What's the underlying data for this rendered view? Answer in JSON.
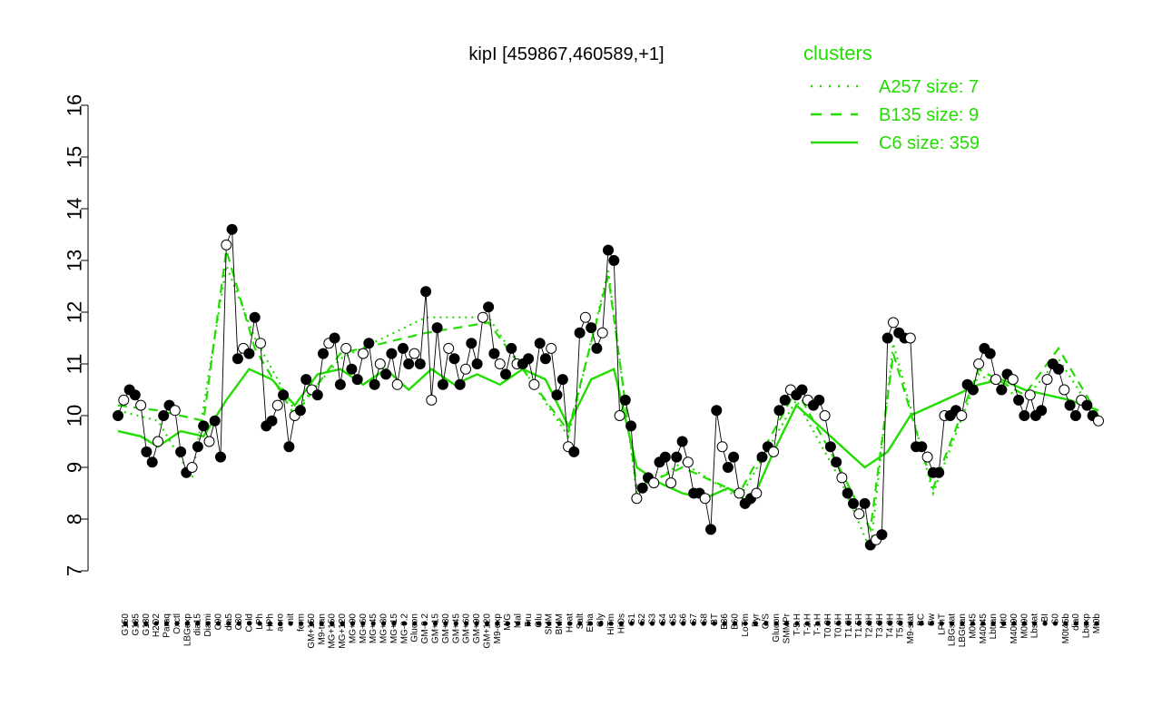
{
  "chart_data": {
    "type": "line",
    "title": "kipI [459867,460589,+1]",
    "xlabel": "",
    "ylabel": "",
    "ylim": [
      7,
      16
    ],
    "yticks": [
      7,
      8,
      9,
      10,
      11,
      12,
      13,
      14,
      15,
      16
    ],
    "x_tick_labels": [
      "G150",
      "G135",
      "G180",
      "H2O2",
      "Paraq",
      "Oxctl",
      "LBGexp",
      "dia15",
      "Diami",
      "C90",
      "dia5",
      "C30",
      "Cold",
      "LPh",
      "HPh",
      "aero",
      "nit",
      "ferm",
      "GM+150",
      "M9-tran",
      "MG+150",
      "MG+120",
      "MG+90",
      "MG+60",
      "MG+45",
      "MG+30",
      "MG+15",
      "MG-0.2",
      "Glucon",
      "GM-0.2",
      "GM+15",
      "GM+30",
      "GM+45",
      "GM+60",
      "GM+90",
      "GM+120",
      "M9-exp",
      "M/G",
      "Mal",
      "Fru",
      "Glu",
      "SMM",
      "BMM",
      "Heat",
      "Salt",
      "Etha",
      "Gly",
      "HiTm",
      "HiOs",
      "S1",
      "S2",
      "S3",
      "S4",
      "S5",
      "S6",
      "S7",
      "S8",
      "BT",
      "B36",
      "B60",
      "LoTm",
      "Pyr",
      "G/S",
      "Glucon",
      "SMMPr",
      "T-5.H",
      "T-2.H",
      "T-1.H",
      "T0.0H",
      "T0.5H",
      "T1.0H",
      "T1.5H",
      "T2.0H",
      "T3.0H",
      "T4.0H",
      "T5.0H",
      "M9-stat",
      "BC",
      "Sw",
      "LPhT",
      "LBGstat",
      "LBGtran",
      "M0t45",
      "M40t45",
      "Lbtran",
      "Mt0",
      "M40t90",
      "M0t90",
      "Lbstat",
      "BI",
      "S0",
      "M0t45b",
      "dia0",
      "Lbexp",
      "Mt0b"
    ],
    "series": [
      {
        "name": "",
        "points": [
          [
            1,
            10.0
          ],
          [
            2,
            10.3
          ],
          [
            3,
            10.5
          ],
          [
            4,
            10.4
          ],
          [
            5,
            10.2
          ],
          [
            6,
            9.3
          ],
          [
            7,
            9.1
          ],
          [
            8,
            9.5
          ],
          [
            9,
            10.0
          ],
          [
            10,
            10.2
          ],
          [
            11,
            10.1
          ],
          [
            12,
            9.3
          ],
          [
            13,
            8.9
          ],
          [
            14,
            9.0
          ],
          [
            15,
            9.4
          ],
          [
            16,
            9.8
          ],
          [
            17,
            9.5
          ],
          [
            18,
            9.9
          ],
          [
            19,
            9.2
          ],
          [
            20,
            13.3
          ],
          [
            21,
            13.6
          ],
          [
            22,
            11.1
          ],
          [
            23,
            11.3
          ],
          [
            24,
            11.2
          ],
          [
            25,
            11.9
          ],
          [
            26,
            11.4
          ],
          [
            27,
            9.8
          ],
          [
            28,
            9.9
          ],
          [
            29,
            10.2
          ],
          [
            30,
            10.4
          ],
          [
            31,
            9.4
          ],
          [
            32,
            10.0
          ],
          [
            33,
            10.1
          ],
          [
            34,
            10.7
          ],
          [
            35,
            10.5
          ],
          [
            36,
            10.4
          ],
          [
            37,
            11.2
          ],
          [
            38,
            11.4
          ],
          [
            39,
            11.5
          ],
          [
            40,
            10.6
          ],
          [
            41,
            11.3
          ],
          [
            42,
            10.9
          ],
          [
            43,
            10.7
          ],
          [
            44,
            11.2
          ],
          [
            45,
            11.4
          ],
          [
            46,
            10.6
          ],
          [
            47,
            11.0
          ],
          [
            48,
            10.8
          ],
          [
            49,
            11.2
          ],
          [
            50,
            10.6
          ],
          [
            51,
            11.3
          ],
          [
            52,
            11.0
          ],
          [
            53,
            11.2
          ],
          [
            54,
            11.0
          ],
          [
            55,
            12.4
          ],
          [
            56,
            10.3
          ],
          [
            57,
            11.7
          ],
          [
            58,
            10.6
          ],
          [
            59,
            11.3
          ],
          [
            60,
            11.1
          ],
          [
            61,
            10.6
          ],
          [
            62,
            10.9
          ],
          [
            63,
            11.4
          ],
          [
            64,
            11.0
          ],
          [
            65,
            11.9
          ],
          [
            66,
            12.1
          ],
          [
            67,
            11.2
          ],
          [
            68,
            11.0
          ],
          [
            69,
            10.8
          ],
          [
            70,
            11.3
          ],
          [
            71,
            11.0
          ],
          [
            72,
            11.0
          ],
          [
            73,
            11.1
          ],
          [
            74,
            10.6
          ],
          [
            75,
            11.4
          ],
          [
            76,
            11.1
          ],
          [
            77,
            11.3
          ],
          [
            78,
            10.4
          ],
          [
            79,
            10.7
          ],
          [
            80,
            9.4
          ],
          [
            81,
            9.3
          ],
          [
            82,
            11.6
          ],
          [
            83,
            11.9
          ],
          [
            84,
            11.7
          ],
          [
            85,
            11.3
          ],
          [
            86,
            11.6
          ],
          [
            87,
            13.2
          ],
          [
            88,
            13.0
          ],
          [
            89,
            10.0
          ],
          [
            90,
            10.3
          ],
          [
            91,
            9.8
          ],
          [
            92,
            8.4
          ],
          [
            93,
            8.6
          ],
          [
            94,
            8.8
          ],
          [
            95,
            8.7
          ],
          [
            96,
            9.1
          ],
          [
            97,
            9.2
          ],
          [
            98,
            8.7
          ],
          [
            99,
            9.2
          ],
          [
            100,
            9.5
          ],
          [
            101,
            9.1
          ],
          [
            102,
            8.5
          ],
          [
            103,
            8.5
          ],
          [
            104,
            8.4
          ],
          [
            105,
            7.8
          ],
          [
            106,
            10.1
          ],
          [
            107,
            9.4
          ],
          [
            108,
            9.0
          ],
          [
            109,
            9.2
          ],
          [
            110,
            8.5
          ],
          [
            111,
            8.3
          ],
          [
            112,
            8.4
          ],
          [
            113,
            8.5
          ],
          [
            114,
            9.2
          ],
          [
            115,
            9.4
          ],
          [
            116,
            9.3
          ],
          [
            117,
            10.1
          ],
          [
            118,
            10.3
          ],
          [
            119,
            10.5
          ],
          [
            120,
            10.4
          ],
          [
            121,
            10.5
          ],
          [
            122,
            10.3
          ],
          [
            123,
            10.2
          ],
          [
            124,
            10.3
          ],
          [
            125,
            10.0
          ],
          [
            126,
            9.4
          ],
          [
            127,
            9.1
          ],
          [
            128,
            8.8
          ],
          [
            129,
            8.5
          ],
          [
            130,
            8.3
          ],
          [
            131,
            8.1
          ],
          [
            132,
            8.3
          ],
          [
            133,
            7.5
          ],
          [
            134,
            7.6
          ],
          [
            135,
            7.7
          ],
          [
            136,
            11.5
          ],
          [
            137,
            11.8
          ],
          [
            138,
            11.6
          ],
          [
            139,
            11.5
          ],
          [
            140,
            11.5
          ],
          [
            141,
            9.4
          ],
          [
            142,
            9.4
          ],
          [
            143,
            9.2
          ],
          [
            144,
            8.9
          ],
          [
            145,
            8.9
          ],
          [
            146,
            10.0
          ],
          [
            147,
            10.0
          ],
          [
            148,
            10.1
          ],
          [
            149,
            10.0
          ],
          [
            150,
            10.6
          ],
          [
            151,
            10.5
          ],
          [
            152,
            11.0
          ],
          [
            153,
            11.3
          ],
          [
            154,
            11.2
          ],
          [
            155,
            10.7
          ],
          [
            156,
            10.5
          ],
          [
            157,
            10.8
          ],
          [
            158,
            10.7
          ],
          [
            159,
            10.3
          ],
          [
            160,
            10.0
          ],
          [
            161,
            10.4
          ],
          [
            162,
            10.0
          ],
          [
            163,
            10.1
          ],
          [
            164,
            10.7
          ],
          [
            165,
            11.0
          ],
          [
            166,
            10.9
          ],
          [
            167,
            10.5
          ],
          [
            168,
            10.2
          ],
          [
            169,
            10.0
          ],
          [
            170,
            10.3
          ],
          [
            171,
            10.2
          ],
          [
            172,
            10.0
          ],
          [
            173,
            9.9
          ]
        ]
      }
    ],
    "cluster_lines": [
      {
        "name": "C6 size: 359",
        "style": "solid",
        "points": [
          [
            1,
            9.7
          ],
          [
            5,
            9.6
          ],
          [
            8,
            9.4
          ],
          [
            12,
            9.7
          ],
          [
            16,
            9.6
          ],
          [
            20,
            10.3
          ],
          [
            24,
            10.9
          ],
          [
            28,
            10.7
          ],
          [
            32,
            10.2
          ],
          [
            36,
            10.8
          ],
          [
            40,
            10.9
          ],
          [
            44,
            10.6
          ],
          [
            48,
            10.9
          ],
          [
            52,
            10.5
          ],
          [
            56,
            10.9
          ],
          [
            60,
            10.6
          ],
          [
            64,
            10.8
          ],
          [
            68,
            10.6
          ],
          [
            72,
            10.9
          ],
          [
            76,
            10.7
          ],
          [
            80,
            9.8
          ],
          [
            84,
            10.7
          ],
          [
            88,
            10.9
          ],
          [
            92,
            9.0
          ],
          [
            96,
            8.7
          ],
          [
            100,
            8.5
          ],
          [
            104,
            8.4
          ],
          [
            108,
            8.6
          ],
          [
            112,
            8.3
          ],
          [
            116,
            9.3
          ],
          [
            120,
            10.2
          ],
          [
            124,
            9.8
          ],
          [
            128,
            9.4
          ],
          [
            132,
            9.0
          ],
          [
            136,
            9.3
          ],
          [
            140,
            10.0
          ],
          [
            144,
            10.2
          ],
          [
            148,
            10.4
          ],
          [
            152,
            10.6
          ],
          [
            156,
            10.7
          ],
          [
            160,
            10.5
          ],
          [
            164,
            10.4
          ],
          [
            168,
            10.3
          ],
          [
            173,
            10.1
          ]
        ]
      },
      {
        "name": "B135 size: 9",
        "style": "dashed",
        "points": [
          [
            1,
            10.2
          ],
          [
            8,
            10.1
          ],
          [
            16,
            9.9
          ],
          [
            20,
            13.2
          ],
          [
            25,
            11.3
          ],
          [
            32,
            10.0
          ],
          [
            40,
            11.2
          ],
          [
            55,
            11.6
          ],
          [
            66,
            11.8
          ],
          [
            80,
            9.7
          ],
          [
            87,
            12.7
          ],
          [
            92,
            8.6
          ],
          [
            100,
            9.0
          ],
          [
            110,
            8.5
          ],
          [
            120,
            10.5
          ],
          [
            128,
            8.9
          ],
          [
            133,
            7.8
          ],
          [
            137,
            11.2
          ],
          [
            144,
            8.6
          ],
          [
            152,
            10.9
          ],
          [
            160,
            10.4
          ],
          [
            166,
            11.3
          ],
          [
            173,
            10.0
          ]
        ]
      },
      {
        "name": "A257 size: 7",
        "style": "dotted",
        "points": [
          [
            1,
            10.1
          ],
          [
            8,
            9.9
          ],
          [
            14,
            8.8
          ],
          [
            20,
            12.9
          ],
          [
            25,
            11.5
          ],
          [
            32,
            10.1
          ],
          [
            40,
            11.1
          ],
          [
            55,
            11.9
          ],
          [
            66,
            11.9
          ],
          [
            80,
            9.6
          ],
          [
            87,
            12.8
          ],
          [
            92,
            8.5
          ],
          [
            100,
            9.1
          ],
          [
            110,
            8.4
          ],
          [
            120,
            10.3
          ],
          [
            128,
            8.7
          ],
          [
            133,
            7.4
          ],
          [
            137,
            11.4
          ],
          [
            144,
            8.5
          ],
          [
            152,
            10.8
          ],
          [
            160,
            10.3
          ],
          [
            166,
            11.1
          ],
          [
            173,
            9.9
          ]
        ]
      }
    ],
    "legend": {
      "title": "clusters",
      "position": "top-right",
      "entries": [
        {
          "label": "A257 size: 7",
          "style": "dotted"
        },
        {
          "label": "B135 size: 9",
          "style": "dashed"
        },
        {
          "label": "C6 size: 359",
          "style": "solid"
        }
      ]
    },
    "colors": {
      "cluster": "#22dd00",
      "point": "#000000",
      "hollow": "#ffffff"
    },
    "grid": false
  }
}
